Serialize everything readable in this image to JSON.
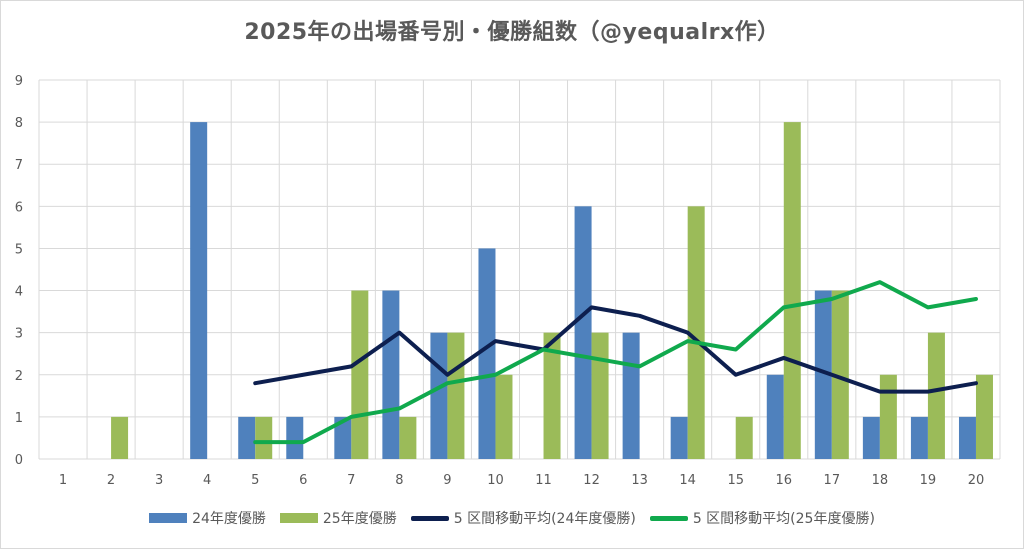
{
  "chart_data": {
    "type": "bar",
    "title": "2025年の出場番号別・優勝組数（@yequalrx作）",
    "categories": [
      "1",
      "2",
      "3",
      "4",
      "5",
      "6",
      "7",
      "8",
      "9",
      "10",
      "11",
      "12",
      "13",
      "14",
      "15",
      "16",
      "17",
      "18",
      "19",
      "20"
    ],
    "ylim": [
      0,
      9
    ],
    "yticks": [
      "0",
      "1",
      "2",
      "3",
      "4",
      "5",
      "6",
      "7",
      "8",
      "9"
    ],
    "grid": true,
    "legend_position": "bottom",
    "series": [
      {
        "name": "24年度優勝",
        "kind": "bar",
        "color": "#4f81bd",
        "values": [
          0,
          0,
          0,
          8,
          1,
          1,
          1,
          4,
          3,
          5,
          0,
          6,
          3,
          1,
          0,
          2,
          4,
          1,
          1,
          1
        ]
      },
      {
        "name": "25年度優勝",
        "kind": "bar",
        "color": "#9bbb59",
        "values": [
          0,
          1,
          0,
          0,
          1,
          0,
          4,
          1,
          3,
          2,
          3,
          3,
          0,
          6,
          1,
          8,
          4,
          2,
          3,
          2
        ]
      },
      {
        "name": "5 区間移動平均(24年度優勝)",
        "kind": "line",
        "color": "#0d1f4f",
        "values": [
          null,
          null,
          null,
          null,
          1.8,
          2.0,
          2.2,
          3.0,
          2.0,
          2.8,
          2.6,
          3.6,
          3.4,
          3.0,
          2.0,
          2.4,
          2.0,
          1.6,
          1.6,
          1.8
        ]
      },
      {
        "name": "5 区間移動平均(25年度優勝)",
        "kind": "line",
        "color": "#10a94d",
        "values": [
          null,
          null,
          null,
          null,
          0.4,
          0.4,
          1.0,
          1.2,
          1.8,
          2.0,
          2.6,
          2.4,
          2.2,
          2.8,
          2.6,
          3.6,
          3.8,
          4.2,
          3.6,
          3.8
        ]
      }
    ]
  }
}
